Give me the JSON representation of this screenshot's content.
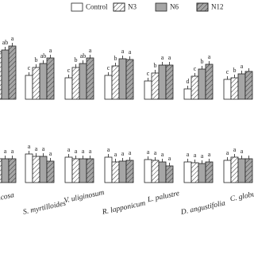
{
  "chart_data": [
    {
      "type": "bar",
      "series": [
        {
          "name": "Control",
          "color": "#ffffff",
          "hatch": false,
          "values": [
            58,
            30,
            27,
            30,
            23,
            13,
            25
          ],
          "letters": [
            null,
            "c",
            "c",
            "c",
            "c",
            "d",
            "c"
          ]
        },
        {
          "name": "N3",
          "color": "#ffffff",
          "hatch": true,
          "values": [
            60,
            40,
            40,
            42,
            33,
            29,
            27
          ],
          "letters": [
            null,
            "b",
            "b",
            "b",
            "b",
            "c",
            "b"
          ]
        },
        {
          "name": "N6",
          "color": "#a6a6a6",
          "hatch": false,
          "values": [
            62,
            45,
            45,
            51,
            43,
            38,
            32
          ],
          "letters": [
            "ab",
            "ab",
            "ab",
            "a",
            "a",
            "b",
            "a"
          ]
        },
        {
          "name": "N12",
          "color": "#a6a6a6",
          "hatch": true,
          "values": [
            67,
            52,
            52,
            50,
            43,
            44,
            35
          ],
          "letters": [
            "a",
            "a",
            "a",
            "a",
            "a",
            "a",
            null
          ]
        }
      ]
    },
    {
      "type": "bar",
      "categories": [
        "icosa",
        "S. myrtilloides",
        "V. uliginosum",
        "R. lapponicum",
        "L. palustre",
        "D. angustifolia",
        "C. globu"
      ],
      "series": [
        {
          "values": [
            30,
            36,
            32,
            32,
            29,
            26,
            28
          ],
          "letters": [
            null,
            "a",
            "a",
            "a",
            "a",
            "a",
            "a"
          ]
        },
        {
          "values": [
            30,
            33,
            30,
            26,
            28,
            25,
            32
          ],
          "letters": [
            "a",
            "a",
            "a",
            "a",
            "a",
            "a",
            "a"
          ]
        },
        {
          "values": [
            30,
            33,
            30,
            27,
            26,
            24,
            30
          ],
          "letters": [
            "a",
            "a",
            "a",
            "a",
            "a",
            "a",
            "a"
          ]
        },
        {
          "values": [
            30,
            27,
            30,
            28,
            21,
            26,
            30
          ],
          "letters": [
            "a",
            "a",
            "a",
            "a",
            "a",
            "a",
            null
          ]
        }
      ]
    }
  ]
}
